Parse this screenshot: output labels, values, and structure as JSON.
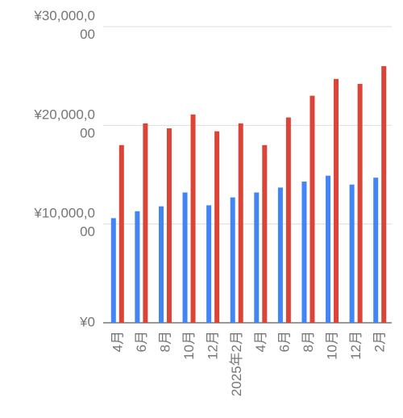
{
  "chart_data": {
    "type": "bar",
    "categories": [
      "4月",
      "6月",
      "8月",
      "10月",
      "12月",
      "2025年2月",
      "4月",
      "6月",
      "8月",
      "10月",
      "12月",
      "2月"
    ],
    "series": [
      {
        "color": "#4285f4",
        "values": [
          10600000,
          11300000,
          11800000,
          13200000,
          11900000,
          12700000,
          13200000,
          13700000,
          14300000,
          14900000,
          14000000,
          14700000
        ]
      },
      {
        "color": "#db4437",
        "values": [
          18000000,
          20200000,
          19700000,
          21100000,
          19400000,
          20200000,
          18000000,
          20800000,
          23000000,
          24700000,
          24200000,
          26000000
        ]
      }
    ],
    "ylim": [
      0,
      30000000
    ],
    "yticks": [
      {
        "value": 0,
        "label": "¥0"
      },
      {
        "value": 10000000,
        "label": "¥10,000,000"
      },
      {
        "value": 20000000,
        "label": "¥20,000,000"
      },
      {
        "value": 30000000,
        "label": "¥30,000,000"
      }
    ],
    "grid": true
  }
}
